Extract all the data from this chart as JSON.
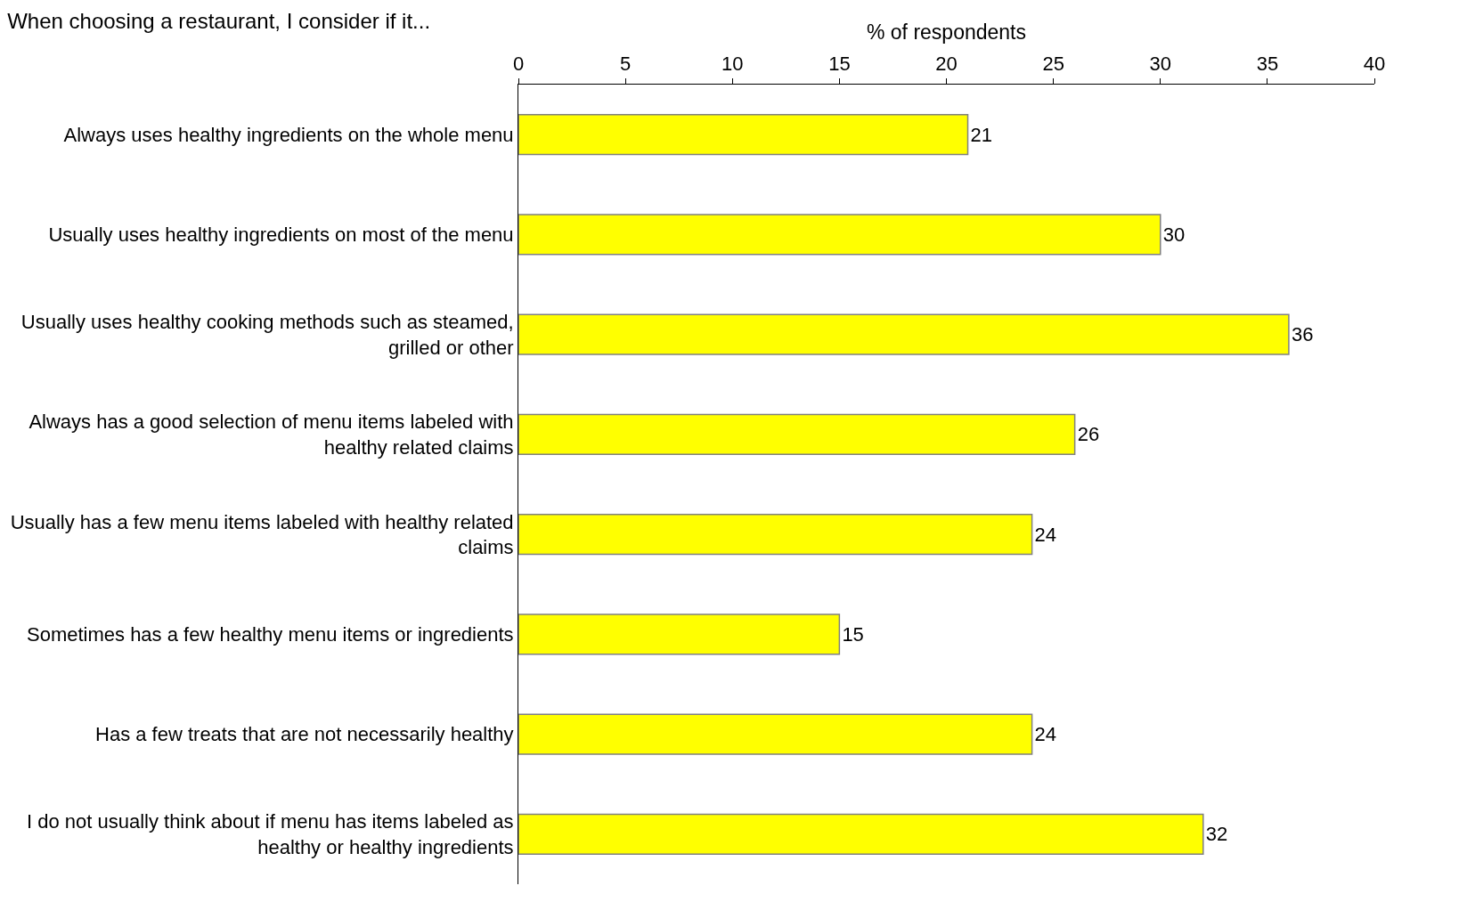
{
  "chart_data": {
    "type": "bar",
    "orientation": "horizontal",
    "title": "When choosing a restaurant, I consider if it...",
    "xlabel": "% of respondents",
    "categories": [
      "Always uses healthy ingredients on the whole menu",
      "Usually uses healthy ingredients on most of the menu",
      "Usually uses healthy cooking methods such as steamed, grilled or other",
      "Always has a good selection of menu items labeled with healthy related claims",
      "Usually has a few menu items labeled with healthy related claims",
      "Sometimes has a few healthy menu items or ingredients",
      "Has a few treats that are not necessarily healthy",
      "I do not usually think about if menu has items labeled as healthy or healthy ingredients"
    ],
    "values": [
      21,
      30,
      36,
      26,
      24,
      15,
      24,
      32
    ],
    "color": "#ffff00",
    "xlim": [
      0,
      40
    ],
    "xticks": [
      0,
      5,
      10,
      15,
      20,
      25,
      30,
      35,
      40
    ],
    "data_labels": true
  }
}
